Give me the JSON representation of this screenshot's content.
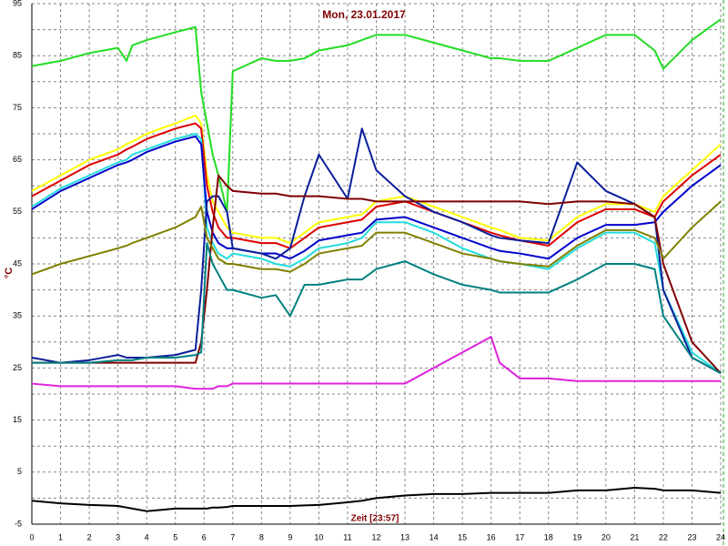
{
  "chart_data": {
    "type": "line",
    "title": "Mon, 23.01.2017",
    "y_label": "°C",
    "x_label": "Zeit [23:57]",
    "x": [
      0,
      1,
      2,
      3,
      3.3,
      3.5,
      4,
      5,
      5.7,
      5.9,
      6.1,
      6.3,
      6.5,
      6.8,
      7,
      8,
      8.5,
      9,
      9.5,
      10,
      11,
      11.5,
      12,
      13,
      14,
      15,
      16,
      16.3,
      17,
      18,
      19,
      20,
      21,
      21.7,
      22,
      23,
      24
    ],
    "xlim": [
      0,
      24
    ],
    "xticks": [
      0,
      1,
      2,
      3,
      4,
      5,
      6,
      7,
      8,
      9,
      10,
      11,
      12,
      13,
      14,
      15,
      16,
      17,
      18,
      19,
      20,
      21,
      22,
      23,
      24
    ],
    "ylim": [
      -5,
      95
    ],
    "yticks": [
      -5,
      5,
      15,
      25,
      35,
      45,
      55,
      65,
      75,
      85,
      95
    ],
    "grid": true,
    "series": [
      {
        "color": "#22dd22",
        "values": [
          83,
          84,
          85.5,
          86.5,
          84,
          87,
          88,
          89.5,
          90.5,
          78,
          72,
          66,
          62,
          55,
          82,
          84.5,
          84,
          84,
          84.5,
          86,
          87,
          88,
          89,
          89,
          87.5,
          86,
          84.5,
          84.5,
          84,
          84,
          86.5,
          89,
          89,
          86,
          82.5,
          88,
          92
        ]
      },
      {
        "color": "#ffff00",
        "values": [
          59,
          62,
          65,
          67,
          68,
          68.5,
          70,
          72,
          73.5,
          72,
          62,
          57,
          55,
          52,
          51,
          50,
          50,
          49,
          51,
          53,
          54,
          54.5,
          57,
          58,
          56,
          54,
          52,
          51.5,
          50,
          49.5,
          54,
          56.5,
          56.5,
          55,
          58,
          63,
          68
        ]
      },
      {
        "color": "#dd0000",
        "values": [
          58,
          61,
          64,
          66,
          67,
          67.5,
          69,
          71,
          72,
          71,
          60,
          55,
          52,
          50,
          50,
          49,
          49,
          48,
          50,
          52,
          53,
          53.5,
          56,
          57,
          55,
          53,
          51,
          50.5,
          49.5,
          48.5,
          53,
          55.5,
          55.5,
          54,
          57,
          62,
          66
        ]
      },
      {
        "color": "#22dddd",
        "values": [
          56,
          59.5,
          62,
          64.5,
          65,
          66,
          67,
          69,
          70,
          69,
          52,
          49,
          47,
          46,
          47,
          46,
          45,
          44.5,
          46,
          48,
          49,
          50,
          53,
          53,
          51,
          48,
          46,
          45.5,
          45,
          44,
          48,
          51,
          51,
          49,
          40,
          28,
          24
        ]
      },
      {
        "color": "#0000cc",
        "values": [
          55.5,
          59,
          61.5,
          64,
          64.5,
          65,
          66.5,
          68.5,
          69.5,
          68,
          55,
          51,
          49,
          48,
          48,
          47,
          47,
          46,
          47.5,
          49.5,
          50.5,
          51,
          53.5,
          54,
          52,
          50,
          48,
          47.5,
          47,
          46,
          50,
          52.5,
          52.5,
          53,
          55,
          60,
          64
        ]
      },
      {
        "color": "#0a1e9a",
        "values": [
          27,
          26,
          26.5,
          27.5,
          27,
          27,
          27,
          27.5,
          28.5,
          40,
          57,
          58,
          58,
          55,
          48,
          47,
          46,
          48,
          58,
          66,
          57.5,
          71,
          63,
          58,
          55,
          53,
          50.5,
          50,
          49.5,
          49,
          64.5,
          59,
          56.5,
          54,
          40,
          27,
          24
        ]
      },
      {
        "color": "#800000",
        "values": [
          26,
          26,
          26,
          26,
          26,
          26,
          26,
          26,
          26,
          30,
          40,
          52,
          62,
          60,
          59,
          58.5,
          58.5,
          58,
          58,
          58,
          57.5,
          57.5,
          57,
          57,
          57,
          57,
          57,
          57,
          57,
          56.5,
          57,
          57,
          56.5,
          54,
          45,
          30,
          24
        ]
      },
      {
        "color": "#808000",
        "values": [
          43,
          45,
          46.5,
          48,
          48.5,
          49,
          50,
          52,
          54,
          56,
          50,
          48,
          46,
          45,
          45,
          44,
          44,
          43.5,
          45,
          47,
          48,
          48.5,
          51,
          51,
          49,
          47,
          46,
          45.5,
          45,
          44.5,
          48.5,
          51.5,
          51.5,
          50,
          46,
          52,
          57
        ]
      },
      {
        "color": "#008080",
        "values": [
          26,
          26,
          26,
          26.5,
          26.5,
          26.5,
          27,
          27,
          27.5,
          28,
          49,
          45,
          43,
          40,
          40,
          38.5,
          39,
          35,
          41,
          41,
          42,
          42,
          44,
          45.5,
          43,
          41,
          40,
          39.5,
          39.5,
          39.5,
          42,
          45,
          45,
          44,
          35,
          27,
          24
        ]
      },
      {
        "color": "#dd22dd",
        "values": [
          22,
          21.5,
          21.5,
          21.5,
          21.5,
          21.5,
          21.5,
          21.5,
          21,
          21,
          21,
          21,
          21.5,
          21.5,
          22,
          22,
          22,
          22,
          22,
          22,
          22,
          22,
          22,
          22,
          25,
          28,
          31,
          26,
          23,
          23,
          22.5,
          22.5,
          22.5,
          22.5,
          22.5,
          22.5,
          22.5
        ]
      },
      {
        "color": "#000000",
        "values": [
          -0.5,
          -1,
          -1.3,
          -1.5,
          -1.8,
          -2,
          -2.5,
          -2,
          -2,
          -2,
          -2,
          -1.8,
          -1.8,
          -1.7,
          -1.5,
          -1.5,
          -1.5,
          -1.5,
          -1.4,
          -1.3,
          -0.8,
          -0.5,
          0,
          0.5,
          0.8,
          0.8,
          1,
          1,
          1,
          1,
          1.5,
          1.5,
          2,
          1.8,
          1.5,
          1.5,
          1
        ]
      }
    ]
  }
}
